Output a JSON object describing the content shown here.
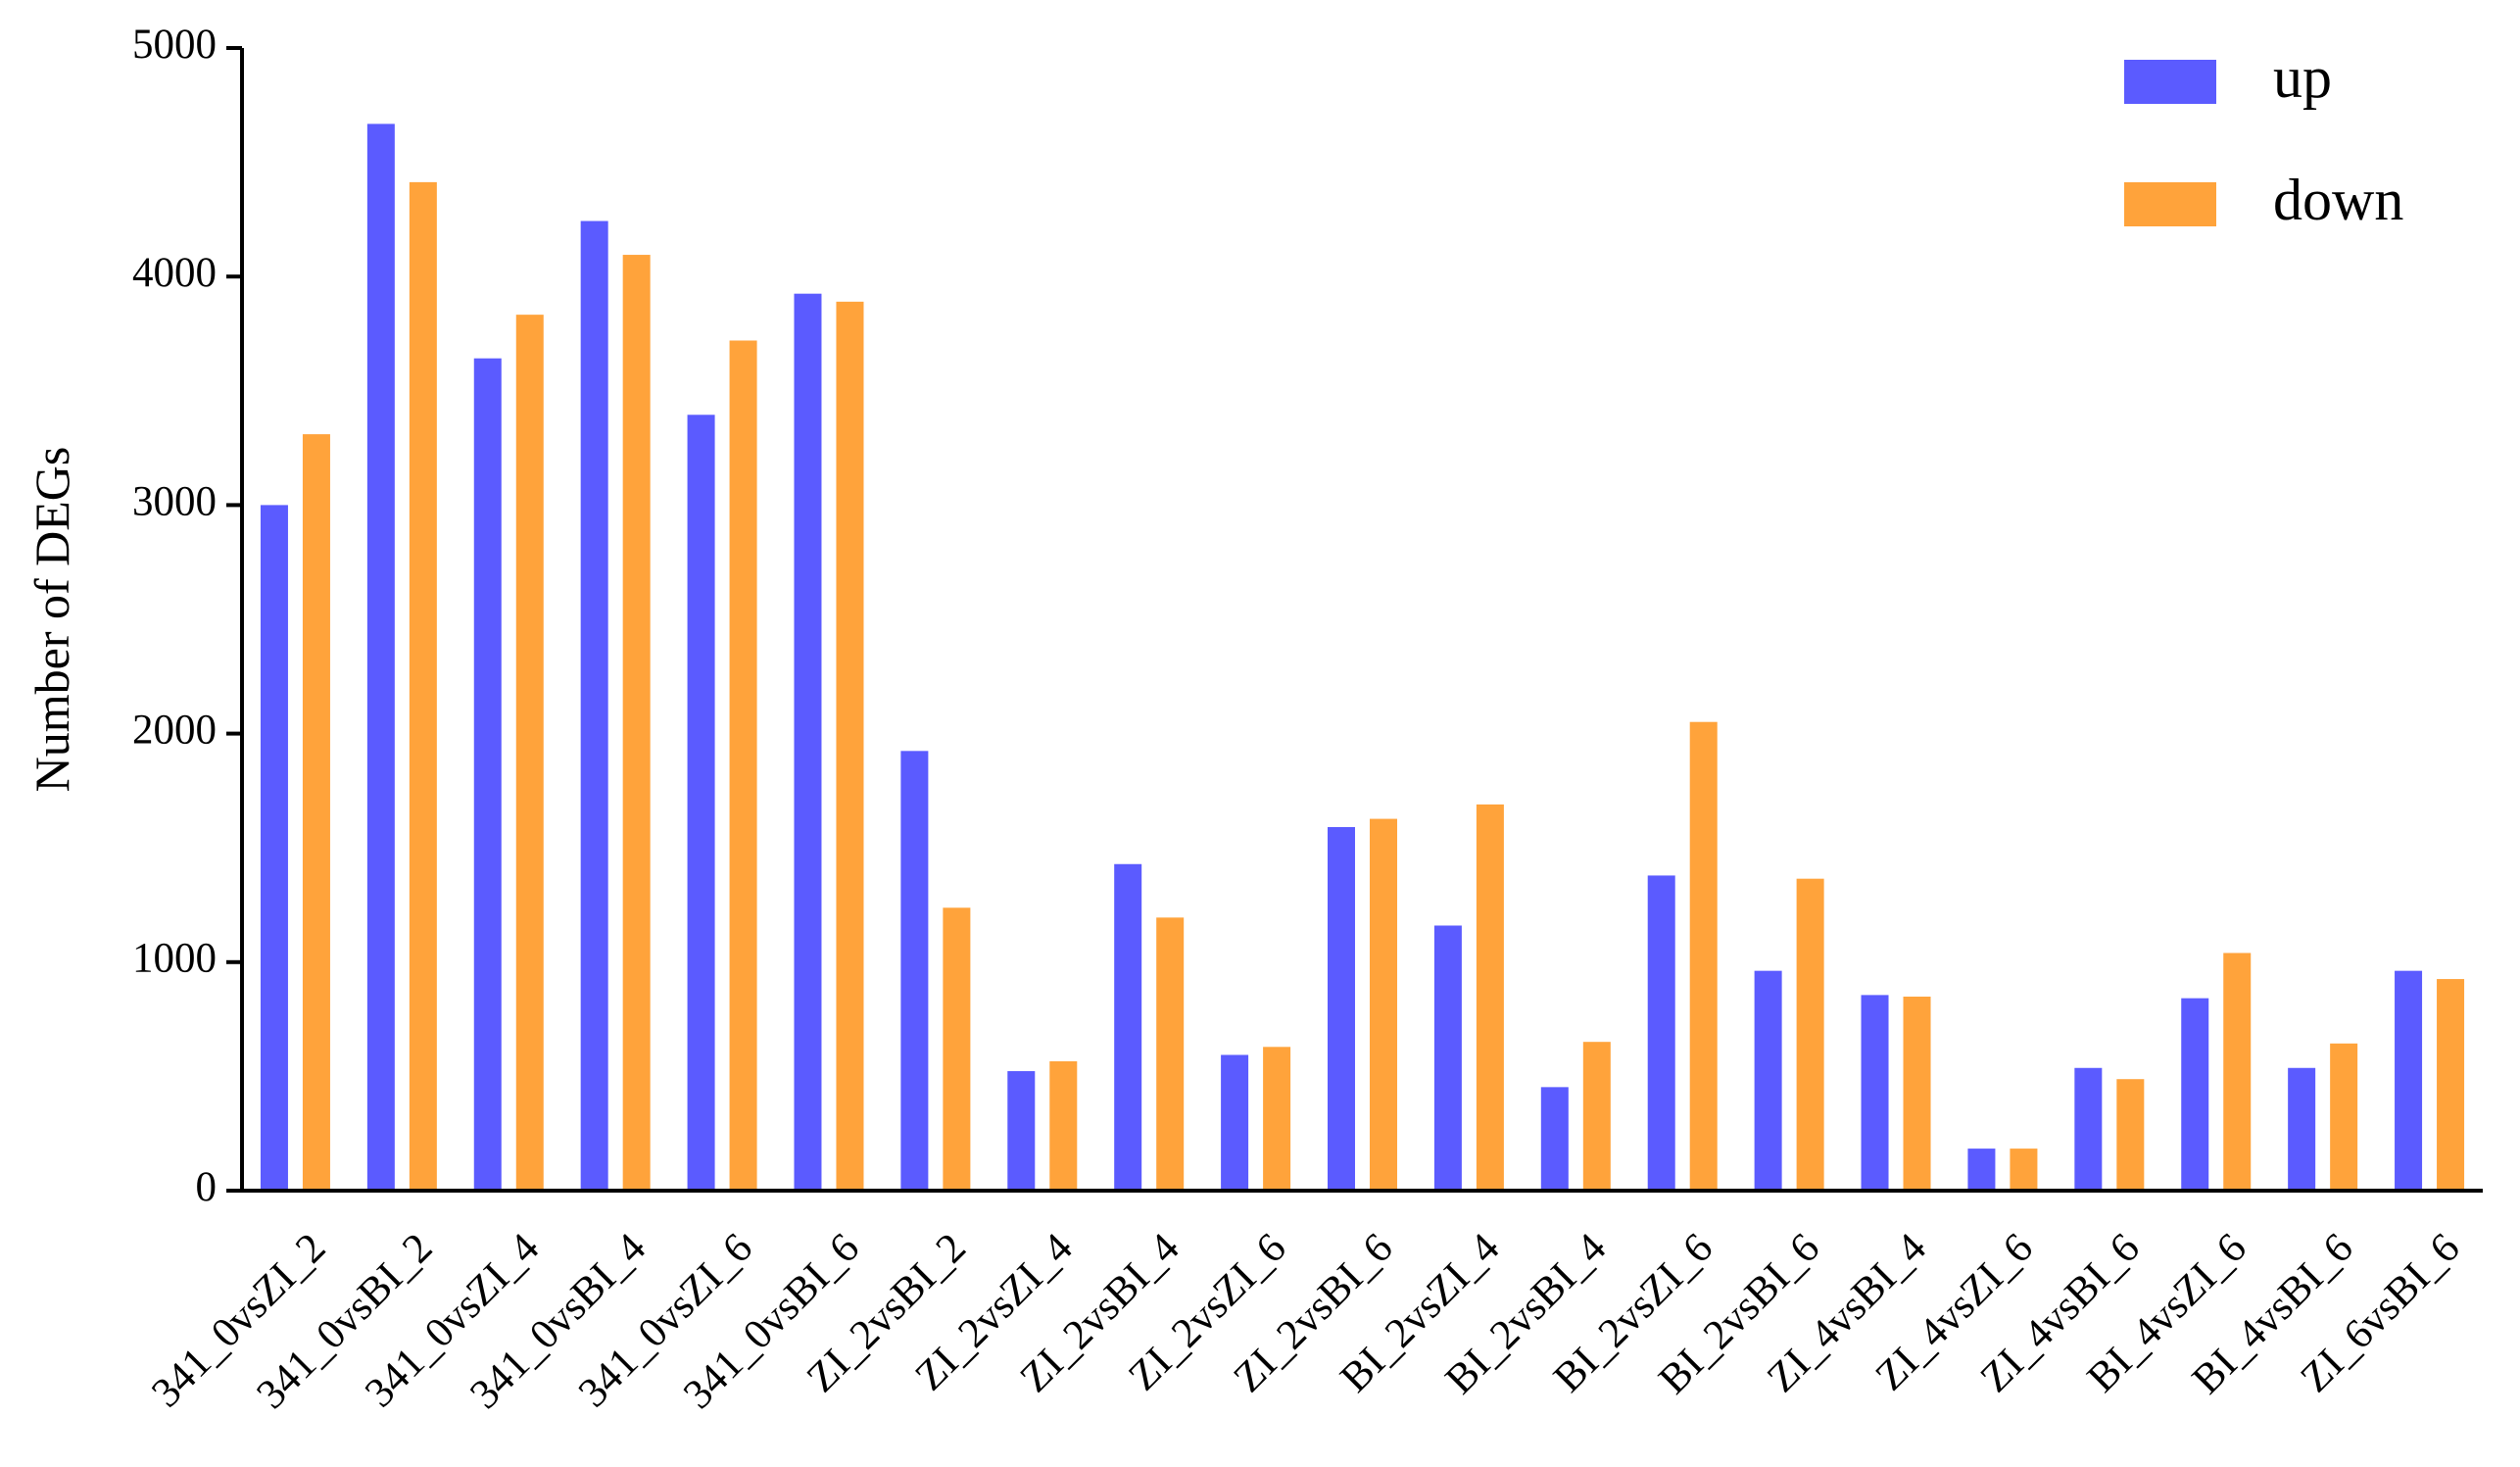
{
  "chart_data": {
    "type": "bar",
    "y_label": "Number of DEGs",
    "categories": [
      "341_0vsZI_2",
      "341_0vsBI_2",
      "341_0vsZI_4",
      "341_0vsBI_4",
      "341_0vsZI_6",
      "341_0vsBI_6",
      "ZI_2vsBI_2",
      "ZI_2vsZI_4",
      "ZI_2vsBI_4",
      "ZI_2vsZI_6",
      "ZI_2vsBI_6",
      "BI_2vsZI_4",
      "BI_2vsBI_4",
      "BI_2vsZI_6",
      "BI_2vsBI_6",
      "ZI_4vsBI_4",
      "ZI_4vsZI_6",
      "ZI_4vsBI_6",
      "BI_4vsZI_6",
      "BI_4vsBI_6",
      "ZI_6vsBI_6"
    ],
    "series": [
      {
        "name": "up",
        "color": "#5b5bff",
        "values": [
          3000,
          4668,
          3642,
          4243,
          3395,
          3925,
          1924,
          523,
          1429,
          594,
          1591,
          1160,
          453,
          1379,
          962,
          856,
          184,
          537,
          842,
          537,
          962
        ]
      },
      {
        "name": "down",
        "color": "#ffa33b",
        "values": [
          3310,
          4413,
          3833,
          4095,
          3720,
          3890,
          1238,
          566,
          1195,
          629,
          1627,
          1690,
          651,
          2051,
          1365,
          849,
          184,
          488,
          1040,
          644,
          926
        ]
      }
    ],
    "ylim": [
      0,
      5000
    ],
    "yticks": [
      0,
      1000,
      2000,
      3000,
      4000,
      5000
    ],
    "grid": false,
    "legend": "top-right"
  }
}
